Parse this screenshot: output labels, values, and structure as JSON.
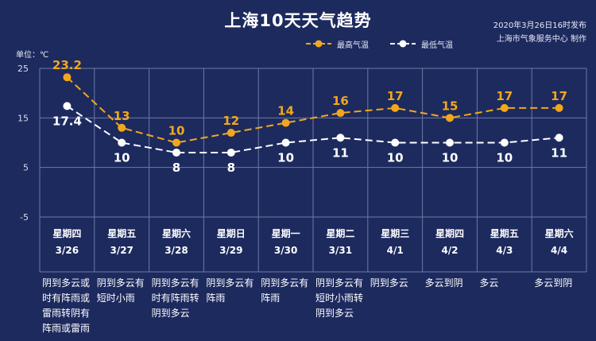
{
  "header": {
    "title": "上海10天天气趋势",
    "publish_line1": "2020年3月26日16时发布",
    "publish_line2": "上海市气象服务中心 制作",
    "unit": "单位：℃"
  },
  "legend": {
    "high_label": "最高气温",
    "low_label": "最低气温"
  },
  "colors": {
    "background": "#1d2a5e",
    "high": "#f2a71b",
    "low": "#ffffff",
    "grid": "#6d7aa6"
  },
  "chart_data": {
    "type": "line",
    "ylim": [
      -5,
      25
    ],
    "yticks": [
      25,
      15,
      5,
      -5
    ],
    "series": [
      {
        "name": "最高气温",
        "values": [
          23.2,
          13,
          10,
          12,
          14,
          16,
          17,
          15,
          17,
          17
        ]
      },
      {
        "name": "最低气温",
        "values": [
          17.4,
          10,
          8,
          8,
          10,
          11,
          10,
          10,
          10,
          11
        ]
      }
    ],
    "value_labels": {
      "high": [
        "23.2",
        "13",
        "10",
        "12",
        "14",
        "16",
        "17",
        "15",
        "17",
        "17"
      ],
      "low": [
        "17.4",
        "10",
        "8",
        "8",
        "10",
        "11",
        "10",
        "10",
        "10",
        "11"
      ]
    },
    "days": [
      {
        "weekday": "星期四",
        "date": "3/26",
        "weather": [
          "阴到多云或",
          "时有阵雨或",
          "雷雨转阴有",
          "阵雨或雷雨"
        ]
      },
      {
        "weekday": "星期五",
        "date": "3/27",
        "weather": [
          "阴到多云有",
          "短时小雨"
        ]
      },
      {
        "weekday": "星期六",
        "date": "3/28",
        "weather": [
          "阴到多云有",
          "时有阵雨转",
          "阴到多云"
        ]
      },
      {
        "weekday": "星期日",
        "date": "3/29",
        "weather": [
          "阴到多云有",
          "阵雨"
        ]
      },
      {
        "weekday": "星期一",
        "date": "3/30",
        "weather": [
          "阴到多云有",
          "阵雨"
        ]
      },
      {
        "weekday": "星期二",
        "date": "3/31",
        "weather": [
          "阴到多云有",
          "短时小雨转",
          "阴到多云"
        ]
      },
      {
        "weekday": "星期三",
        "date": "4/1",
        "weather": [
          "阴到多云"
        ]
      },
      {
        "weekday": "星期四",
        "date": "4/2",
        "weather": [
          "多云到阴"
        ]
      },
      {
        "weekday": "星期五",
        "date": "4/3",
        "weather": [
          "多云"
        ]
      },
      {
        "weekday": "星期六",
        "date": "4/4",
        "weather": [
          "多云到阴"
        ]
      }
    ]
  }
}
